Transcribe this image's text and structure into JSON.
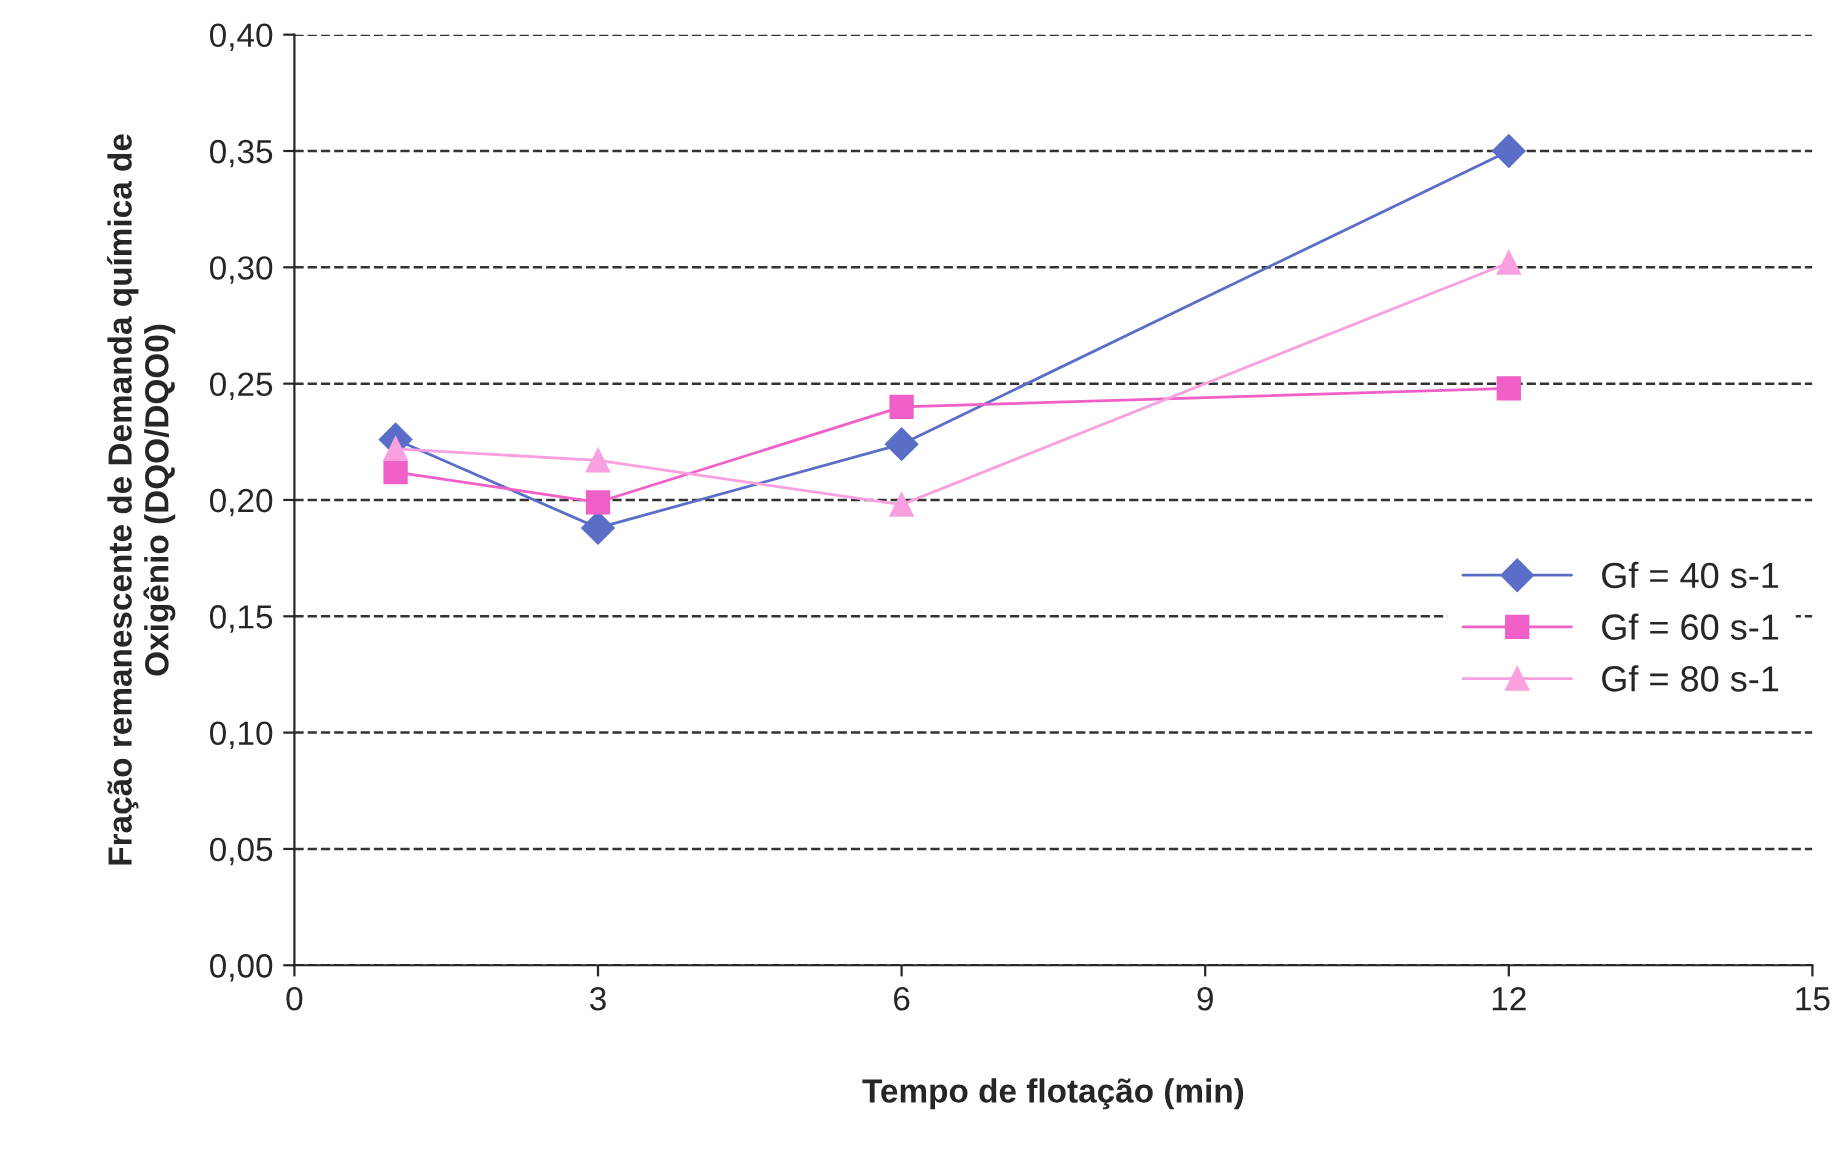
{
  "chart_data": {
    "type": "line",
    "xlabel": "Tempo de flotação (min)",
    "ylabel": "Fração remanescente de Demanda química de\nOxigênio (DQO/DQO0)",
    "x": [
      1,
      3,
      6,
      12
    ],
    "series": [
      {
        "name": "Gf = 40 s-1",
        "color": "#5a6ec8",
        "marker": "diamond",
        "values": [
          0.226,
          0.188,
          0.224,
          0.35
        ]
      },
      {
        "name": "Gf = 60 s-1",
        "color": "#f060c8",
        "marker": "square",
        "values": [
          0.212,
          0.199,
          0.24,
          0.248
        ]
      },
      {
        "name": "Gf = 80 s-1",
        "color": "#f8a0e0",
        "marker": "triangle",
        "values": [
          0.222,
          0.217,
          0.198,
          0.302
        ]
      }
    ],
    "xlim": [
      0,
      15
    ],
    "xticks": [
      0,
      3,
      6,
      9,
      12,
      15
    ],
    "ylim": [
      0,
      0.4
    ],
    "yticks": [
      {
        "value": 0,
        "label": "0,00"
      },
      {
        "value": 0.05,
        "label": "0,05"
      },
      {
        "value": 0.1,
        "label": "0,10"
      },
      {
        "value": 0.15,
        "label": "0,15"
      },
      {
        "value": 0.2,
        "label": "0,20"
      },
      {
        "value": 0.25,
        "label": "0,25"
      },
      {
        "value": 0.3,
        "label": "0,30"
      },
      {
        "value": 0.35,
        "label": "0,35"
      },
      {
        "value": 0.4,
        "label": "0,40"
      }
    ],
    "grid": "y",
    "legend": "right",
    "line_style": "solid"
  }
}
